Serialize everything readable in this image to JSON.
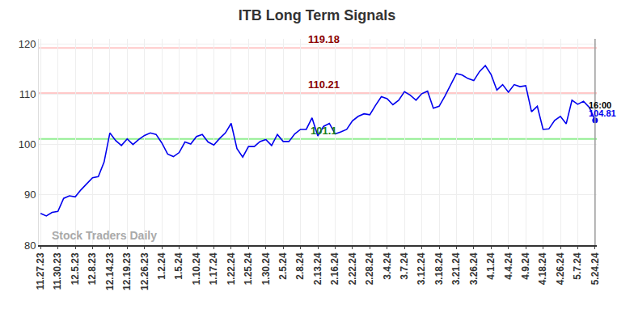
{
  "chart_data": {
    "type": "line",
    "title": "ITB Long Term Signals",
    "categories": [
      "11.27.23",
      null,
      null,
      "11.30.23",
      null,
      null,
      "12.5.23",
      null,
      null,
      "12.8.23",
      null,
      null,
      "12.14.23",
      null,
      null,
      "12.19.23",
      null,
      null,
      "12.26.23",
      null,
      null,
      "1.2.24",
      null,
      null,
      "1.5.24",
      null,
      null,
      "1.10.24",
      null,
      null,
      "1.17.24",
      null,
      null,
      "1.22.24",
      null,
      null,
      "1.25.24",
      null,
      null,
      "1.30.24",
      null,
      null,
      "2.5.24",
      null,
      null,
      "2.8.24",
      null,
      null,
      "2.13.24",
      null,
      null,
      "2.16.24",
      null,
      null,
      "2.22.24",
      null,
      null,
      "2.28.24",
      null,
      null,
      "3.4.24",
      null,
      null,
      "3.7.24",
      null,
      null,
      "3.12.24",
      null,
      null,
      "3.18.24",
      null,
      null,
      "3.21.24",
      null,
      null,
      "3.26.24",
      null,
      null,
      "4.1.24",
      null,
      null,
      "4.4.24",
      null,
      null,
      "4.9.24",
      null,
      null,
      "4.18.24",
      null,
      null,
      "4.26.24",
      null,
      null,
      "5.7.24",
      null,
      null,
      "5.24.24"
    ],
    "values": [
      86.3,
      85.8,
      86.5,
      86.7,
      89.3,
      89.8,
      89.6,
      91.0,
      92.2,
      93.4,
      93.6,
      96.5,
      102.3,
      100.8,
      99.8,
      101.1,
      100.0,
      101.0,
      101.8,
      102.3,
      102.0,
      100.3,
      98.1,
      97.6,
      98.4,
      100.5,
      100.1,
      101.6,
      102.0,
      100.5,
      99.9,
      101.2,
      102.3,
      104.2,
      99.2,
      97.5,
      99.6,
      99.6,
      100.6,
      101.0,
      99.8,
      102.0,
      100.6,
      100.6,
      102.1,
      103.0,
      103.0,
      105.3,
      101.7,
      103.6,
      104.2,
      102.1,
      102.5,
      103.0,
      104.7,
      105.6,
      106.1,
      105.9,
      107.8,
      109.5,
      109.1,
      107.9,
      108.8,
      110.5,
      109.8,
      108.8,
      110.1,
      110.6,
      107.2,
      107.6,
      109.6,
      111.9,
      114.1,
      113.8,
      113.1,
      112.7,
      114.5,
      115.7,
      113.9,
      110.8,
      111.9,
      110.4,
      111.9,
      111.5,
      111.7,
      106.5,
      107.6,
      103.0,
      103.1,
      104.8,
      105.6,
      104.1,
      108.8,
      108.0,
      108.6,
      107.4,
      104.81
    ],
    "color": "#0000ee",
    "ylim": [
      80,
      121
    ],
    "yticks": [
      80,
      90,
      100,
      110,
      120
    ],
    "grid": true,
    "reference_lines": [
      {
        "value": 119.18,
        "color": "#ffc8c8",
        "label_color": "#8b0000"
      },
      {
        "value": 110.21,
        "color": "#ffc8c8",
        "label_color": "#8b0000"
      },
      {
        "value": 101.1,
        "color": "#90ee90",
        "label_color": "#1a7f1a"
      }
    ],
    "last_point": {
      "time": "16:00",
      "value": 104.81,
      "color": "#0000ee"
    },
    "watermark": "Stock Traders Daily"
  }
}
